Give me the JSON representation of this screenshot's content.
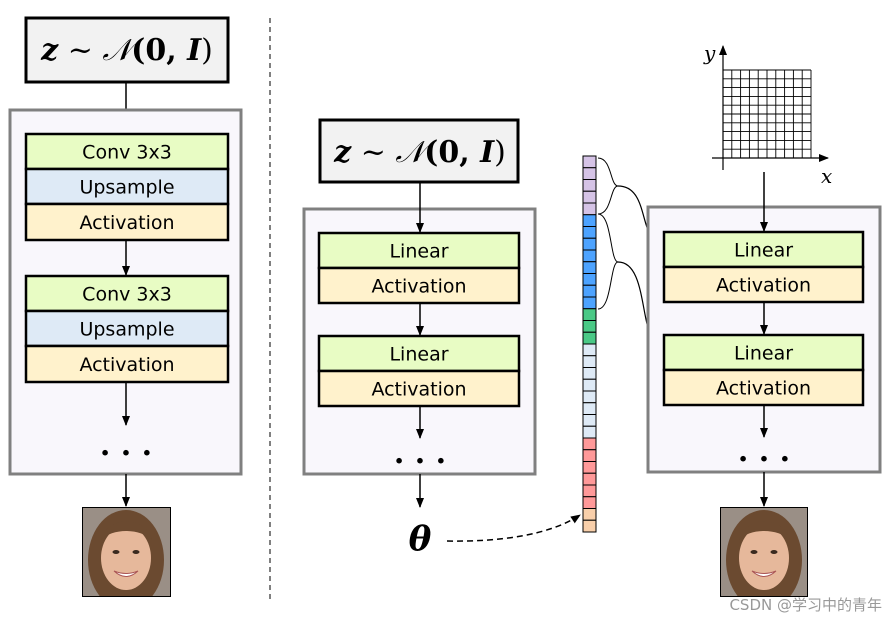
{
  "left": {
    "prior": {
      "z": "z",
      "sim": " ~ ",
      "N": "𝒩",
      "args": "(0, ",
      "I": "I",
      "close": ")"
    },
    "blocks": [
      {
        "conv": "Conv 3x3",
        "upsample": "Upsample",
        "activation": "Activation"
      },
      {
        "conv": "Conv 3x3",
        "upsample": "Upsample",
        "activation": "Activation"
      }
    ],
    "ellipsis": ". . ."
  },
  "middle": {
    "prior": {
      "z": "z",
      "sim": " ~ ",
      "N": "𝒩",
      "args": "(0, ",
      "I": "I",
      "close": ")"
    },
    "blocks": [
      {
        "linear": "Linear",
        "activation": "Activation"
      },
      {
        "linear": "Linear",
        "activation": "Activation"
      }
    ],
    "ellipsis": ". . .",
    "theta": "θ"
  },
  "vector": {
    "segments": [
      {
        "color": "#d5c3e6",
        "count": 5
      },
      {
        "color": "#4da3ff",
        "count": 8
      },
      {
        "color": "#4ac986",
        "count": 3
      },
      {
        "color": "#deeaf6",
        "count": 8
      },
      {
        "color": "#ff9999",
        "count": 6
      },
      {
        "color": "#f8cfaa",
        "count": 2
      }
    ]
  },
  "right": {
    "axes": {
      "x": "x",
      "y": "y",
      "grid_cells": 10
    },
    "blocks": [
      {
        "linear": "Linear",
        "activation": "Activation"
      },
      {
        "linear": "Linear",
        "activation": "Activation"
      }
    ],
    "ellipsis": ". . ."
  },
  "colors": {
    "conv": "#e8fcc4",
    "upsample": "#deeaf6",
    "activation": "#fff2cc",
    "panel": "#f9f7fc",
    "panel_border": "#808080",
    "prior_box": "#f2f2f2"
  },
  "watermark": "CSDN @学习中的青年"
}
